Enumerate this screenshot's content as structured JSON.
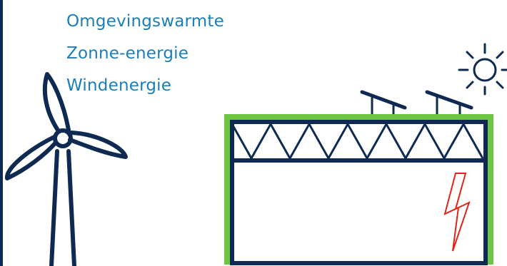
{
  "colors": {
    "navy": "#0e2a52",
    "label_blue": "#1a7fb8",
    "green": "#6cc644",
    "red": "#e2231a"
  },
  "labels": {
    "ambient_heat": "Omgevingswarmte",
    "solar_energy": "Zonne-energie",
    "wind_energy": "Windenergie"
  },
  "icons": {
    "wind": "wind-turbine-icon",
    "sun": "sun-icon",
    "solar": "solar-panel-icon",
    "building": "building-icon",
    "lightning": "lightning-bolt-icon"
  }
}
